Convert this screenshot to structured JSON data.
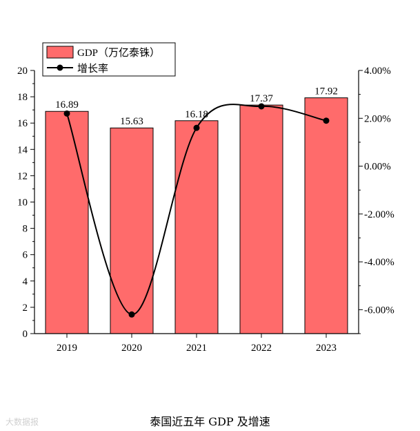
{
  "chart_data": {
    "type": "bar",
    "categories": [
      "2019",
      "2020",
      "2021",
      "2022",
      "2023"
    ],
    "series": [
      {
        "name": "GDP（万亿泰铢）",
        "type": "bar",
        "axis": "left",
        "values": [
          16.89,
          15.63,
          16.18,
          17.37,
          17.92
        ],
        "labels": [
          "16.89",
          "15.63",
          "16.18",
          "17.37",
          "17.92"
        ],
        "color": "#ff6b6b"
      },
      {
        "name": "增长率",
        "type": "line",
        "axis": "right",
        "values": [
          2.2,
          -6.2,
          1.6,
          2.5,
          1.9
        ],
        "color": "#000000"
      }
    ],
    "y_left": {
      "min": 0,
      "max": 20,
      "ticks": [
        "0",
        "2",
        "4",
        "6",
        "8",
        "10",
        "12",
        "14",
        "16",
        "18",
        "20"
      ]
    },
    "y_right": {
      "min": -7,
      "max": 4,
      "ticks": [
        "4.00%",
        "2.00%",
        "0.00%",
        "-2.00%",
        "-4.00%",
        "-6.00%"
      ],
      "tick_values": [
        4,
        2,
        0,
        -2,
        -4,
        -6
      ]
    },
    "legend": "top-left",
    "grid": false
  },
  "caption": "泰国近五年 GDP 及增速",
  "watermark": "大数据报"
}
